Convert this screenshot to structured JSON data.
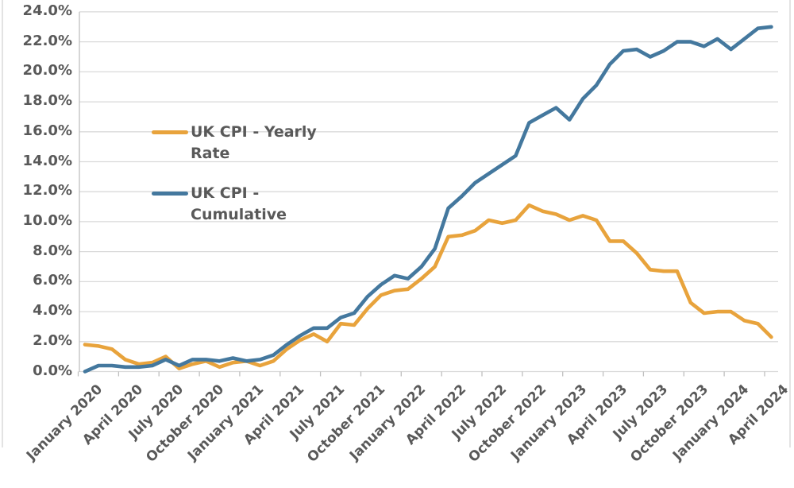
{
  "chart_data": {
    "type": "line",
    "title": "",
    "xlabel": "",
    "ylabel": "",
    "x_start": "January 2020",
    "x_end": "April 2024",
    "x_frequency": "monthly",
    "x_tick_labels": [
      "January 2020",
      "April 2020",
      "July 2020",
      "October 2020",
      "January 2021",
      "April 2021",
      "July 2021",
      "October 2021",
      "January 2022",
      "April 2022",
      "July 2022",
      "October 2022",
      "January 2023",
      "April 2023",
      "July 2023",
      "October 2023",
      "January 2024",
      "April 2024"
    ],
    "x_tick_every_months": 3,
    "y_ticks": [
      "0.0%",
      "2.0%",
      "4.0%",
      "6.0%",
      "8.0%",
      "10.0%",
      "12.0%",
      "14.0%",
      "16.0%",
      "18.0%",
      "20.0%",
      "22.0%",
      "24.0%"
    ],
    "ylim": [
      0,
      24
    ],
    "y_step": 2,
    "grid": true,
    "series": [
      {
        "name": "UK CPI - Yearly Rate",
        "color": "#E8A33C",
        "values": [
          1.8,
          1.7,
          1.5,
          0.8,
          0.5,
          0.6,
          1.0,
          0.2,
          0.5,
          0.7,
          0.3,
          0.6,
          0.7,
          0.4,
          0.7,
          1.5,
          2.1,
          2.5,
          2.0,
          3.2,
          3.1,
          4.2,
          5.1,
          5.4,
          5.5,
          6.2,
          7.0,
          9.0,
          9.1,
          9.4,
          10.1,
          9.9,
          10.1,
          11.1,
          10.7,
          10.5,
          10.1,
          10.4,
          10.1,
          8.7,
          8.7,
          7.9,
          6.8,
          6.7,
          6.7,
          4.6,
          3.9,
          4.0,
          4.0,
          3.4,
          3.2,
          2.3
        ]
      },
      {
        "name": "UK CPI - Cumulative",
        "color": "#44789E",
        "values": [
          0.0,
          0.4,
          0.4,
          0.3,
          0.3,
          0.4,
          0.8,
          0.4,
          0.8,
          0.8,
          0.7,
          0.9,
          0.7,
          0.8,
          1.1,
          1.8,
          2.4,
          2.9,
          2.9,
          3.6,
          3.9,
          5.0,
          5.8,
          6.4,
          6.2,
          7.0,
          8.2,
          10.9,
          11.7,
          12.6,
          13.2,
          13.8,
          14.4,
          16.6,
          17.1,
          17.6,
          16.8,
          18.2,
          19.1,
          20.5,
          21.4,
          21.5,
          21.0,
          21.4,
          22.0,
          22.0,
          21.7,
          22.2,
          21.5,
          22.2,
          22.9,
          23.0
        ]
      }
    ],
    "legend": {
      "position": "inside-upper-left",
      "entries": [
        {
          "series": "UK CPI - Yearly Rate",
          "lines": [
            "UK CPI - Yearly",
            "Rate"
          ]
        },
        {
          "series": "UK CPI - Cumulative",
          "lines": [
            "UK CPI -",
            "Cumulative"
          ]
        }
      ]
    }
  },
  "colors": {
    "background": "#FFFFFF",
    "gridline": "#D9D9D9",
    "axis": "#BFBFBF",
    "text": "#595959",
    "series_yearly": "#E8A33C",
    "series_cumulative": "#44789E"
  }
}
